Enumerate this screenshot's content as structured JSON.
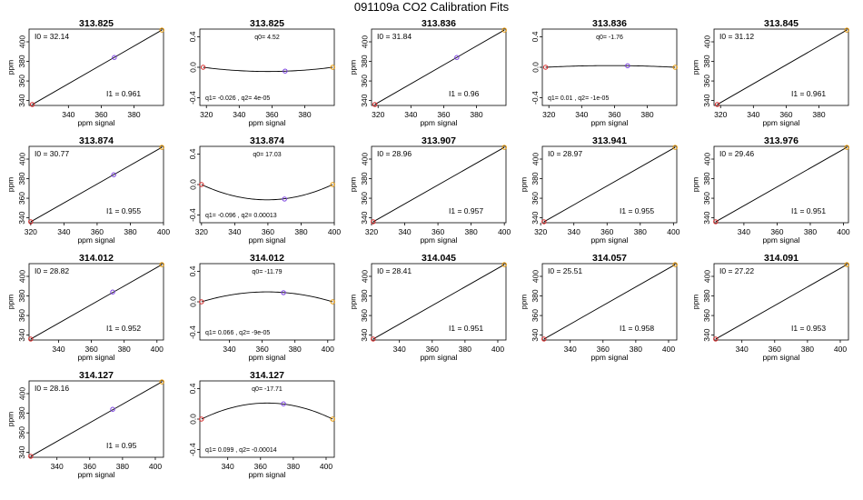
{
  "figure": {
    "title": "091109a   CO2 Calibration Fits"
  },
  "colors": {
    "line": "#000000",
    "point_low": "#d62828",
    "point_mid": "#7a3fe0",
    "point_high": "#e69500"
  },
  "chart_data": [
    {
      "type": "scatter",
      "title": "313.825",
      "xlabel": "ppm signal",
      "ylabel": "ppm",
      "xlim": [
        316,
        398
      ],
      "ylim": [
        335,
        413
      ],
      "xticks": [
        "340",
        "360",
        "380"
      ],
      "yticks": [
        "340",
        "360",
        "380",
        "400"
      ],
      "points": [
        {
          "x": 318,
          "y": 336
        },
        {
          "x": 368,
          "y": 384
        },
        {
          "x": 397,
          "y": 412
        }
      ],
      "fit": {
        "type": "linear",
        "x": [
          318,
          397
        ],
        "y": [
          336,
          412
        ]
      },
      "annotations": {
        "top": "I0 =  32.14",
        "bottom": "I1 =  0.961"
      }
    },
    {
      "type": "scatter",
      "title": "313.825",
      "xlabel": "ppm signal",
      "ylabel": "",
      "xlim": [
        316,
        398
      ],
      "ylim": [
        -0.5,
        0.5
      ],
      "xticks": [
        "320",
        "340",
        "360",
        "380"
      ],
      "yticks": [
        "-0.4",
        "0.0",
        "0.4"
      ],
      "points": [
        {
          "x": 318,
          "y": 0
        },
        {
          "x": 368,
          "y": -0.05
        },
        {
          "x": 397,
          "y": 0
        }
      ],
      "fit": {
        "type": "quadratic",
        "x": [
          318,
          357,
          397
        ],
        "y": [
          0,
          -0.055,
          0
        ]
      },
      "annotations": {
        "top": "q0= 4.52",
        "bottom": "q1= -0.026 , q2= 4e-05"
      }
    },
    {
      "type": "scatter",
      "title": "313.836",
      "xlabel": "ppm signal",
      "ylabel": "ppm",
      "xlim": [
        316,
        398
      ],
      "ylim": [
        335,
        413
      ],
      "xticks": [
        "320",
        "340",
        "360",
        "380"
      ],
      "yticks": [
        "340",
        "360",
        "380",
        "400"
      ],
      "points": [
        {
          "x": 318,
          "y": 336
        },
        {
          "x": 368,
          "y": 384
        },
        {
          "x": 397,
          "y": 412
        }
      ],
      "fit": {
        "type": "linear",
        "x": [
          318,
          397
        ],
        "y": [
          336,
          412
        ]
      },
      "annotations": {
        "top": "I0 =  31.84",
        "bottom": "I1 =  0.96"
      }
    },
    {
      "type": "scatter",
      "title": "313.836",
      "xlabel": "ppm signal",
      "ylabel": "",
      "xlim": [
        316,
        398
      ],
      "ylim": [
        -0.5,
        0.5
      ],
      "xticks": [
        "320",
        "340",
        "360",
        "380"
      ],
      "yticks": [
        "-0.4",
        "0.0",
        "0.4"
      ],
      "points": [
        {
          "x": 318,
          "y": 0
        },
        {
          "x": 368,
          "y": 0.02
        },
        {
          "x": 397,
          "y": 0
        }
      ],
      "fit": {
        "type": "quadratic",
        "x": [
          318,
          357,
          397
        ],
        "y": [
          0,
          0.022,
          0
        ]
      },
      "annotations": {
        "top": "q0= -1.76",
        "bottom": "q1= 0.01 , q2= -1e-05"
      }
    },
    {
      "type": "scatter",
      "title": "313.845",
      "xlabel": "ppm signal",
      "ylabel": "ppm",
      "xlim": [
        316,
        398
      ],
      "ylim": [
        335,
        413
      ],
      "xticks": [
        "320",
        "340",
        "360",
        "380"
      ],
      "yticks": [
        "340",
        "360",
        "380",
        "400"
      ],
      "points": [
        {
          "x": 318,
          "y": 336
        },
        {
          "x": 397,
          "y": 412
        }
      ],
      "fit": {
        "type": "linear",
        "x": [
          318,
          397
        ],
        "y": [
          336,
          412
        ]
      },
      "annotations": {
        "top": "I0 =  31.12",
        "bottom": "I1 =  0.961"
      }
    },
    {
      "type": "scatter",
      "title": "313.874",
      "xlabel": "ppm signal",
      "ylabel": "ppm",
      "xlim": [
        319,
        400
      ],
      "ylim": [
        335,
        413
      ],
      "xticks": [
        "320",
        "340",
        "360",
        "380",
        "400"
      ],
      "yticks": [
        "340",
        "360",
        "380",
        "400"
      ],
      "points": [
        {
          "x": 320,
          "y": 336
        },
        {
          "x": 370,
          "y": 384
        },
        {
          "x": 399,
          "y": 412
        }
      ],
      "fit": {
        "type": "linear",
        "x": [
          320,
          399
        ],
        "y": [
          336,
          412
        ]
      },
      "annotations": {
        "top": "I0 =  30.77",
        "bottom": "I1 =  0.955"
      }
    },
    {
      "type": "scatter",
      "title": "313.874",
      "xlabel": "ppm signal",
      "ylabel": "",
      "xlim": [
        319,
        400
      ],
      "ylim": [
        -0.5,
        0.5
      ],
      "xticks": [
        "320",
        "340",
        "360",
        "380",
        "400"
      ],
      "yticks": [
        "-0.4",
        "0.0",
        "0.4"
      ],
      "points": [
        {
          "x": 320,
          "y": 0
        },
        {
          "x": 370,
          "y": -0.19
        },
        {
          "x": 399,
          "y": 0
        }
      ],
      "fit": {
        "type": "quadratic",
        "x": [
          320,
          359.5,
          399
        ],
        "y": [
          0,
          -0.2,
          0
        ]
      },
      "annotations": {
        "top": "q0= 17.03",
        "bottom": "q1= -0.096 , q2= 0.00013"
      }
    },
    {
      "type": "scatter",
      "title": "313.907",
      "xlabel": "ppm signal",
      "ylabel": "ppm",
      "xlim": [
        320,
        401
      ],
      "ylim": [
        335,
        413
      ],
      "xticks": [
        "320",
        "340",
        "360",
        "380",
        "400"
      ],
      "yticks": [
        "340",
        "360",
        "380",
        "400"
      ],
      "points": [
        {
          "x": 321,
          "y": 336
        },
        {
          "x": 400,
          "y": 412
        }
      ],
      "fit": {
        "type": "linear",
        "x": [
          321,
          400
        ],
        "y": [
          336,
          412
        ]
      },
      "annotations": {
        "top": "I0 =  28.96",
        "bottom": "I1 =  0.957"
      }
    },
    {
      "type": "scatter",
      "title": "313.941",
      "xlabel": "ppm signal",
      "ylabel": "ppm",
      "xlim": [
        321,
        402
      ],
      "ylim": [
        335,
        413
      ],
      "xticks": [
        "320",
        "340",
        "360",
        "380",
        "400"
      ],
      "yticks": [
        "340",
        "360",
        "380",
        "400"
      ],
      "points": [
        {
          "x": 322,
          "y": 336
        },
        {
          "x": 401,
          "y": 412
        }
      ],
      "fit": {
        "type": "linear",
        "x": [
          322,
          401
        ],
        "y": [
          336,
          412
        ]
      },
      "annotations": {
        "top": "I0 =  28.97",
        "bottom": "I1 =  0.955"
      }
    },
    {
      "type": "scatter",
      "title": "313.976",
      "xlabel": "ppm signal",
      "ylabel": "ppm",
      "xlim": [
        322,
        403
      ],
      "ylim": [
        335,
        413
      ],
      "xticks": [
        "340",
        "360",
        "380",
        "400"
      ],
      "yticks": [
        "340",
        "360",
        "380",
        "400"
      ],
      "points": [
        {
          "x": 323,
          "y": 336
        },
        {
          "x": 402,
          "y": 412
        }
      ],
      "fit": {
        "type": "linear",
        "x": [
          323,
          402
        ],
        "y": [
          336,
          412
        ]
      },
      "annotations": {
        "top": "I0 =  29.46",
        "bottom": "I1 =  0.951"
      }
    },
    {
      "type": "scatter",
      "title": "314.012",
      "xlabel": "ppm signal",
      "ylabel": "ppm",
      "xlim": [
        322,
        404
      ],
      "ylim": [
        335,
        413
      ],
      "xticks": [
        "340",
        "360",
        "380",
        "400"
      ],
      "yticks": [
        "340",
        "360",
        "380",
        "400"
      ],
      "points": [
        {
          "x": 323,
          "y": 336
        },
        {
          "x": 373,
          "y": 384
        },
        {
          "x": 403,
          "y": 412
        }
      ],
      "fit": {
        "type": "linear",
        "x": [
          323,
          403
        ],
        "y": [
          336,
          412
        ]
      },
      "annotations": {
        "top": "I0 =  28.82",
        "bottom": "I1 =  0.952"
      }
    },
    {
      "type": "scatter",
      "title": "314.012",
      "xlabel": "ppm signal",
      "ylabel": "",
      "xlim": [
        322,
        404
      ],
      "ylim": [
        -0.5,
        0.5
      ],
      "xticks": [
        "340",
        "360",
        "380",
        "400"
      ],
      "yticks": [
        "-0.4",
        "0.0",
        "0.4"
      ],
      "points": [
        {
          "x": 323,
          "y": 0
        },
        {
          "x": 373,
          "y": 0.12
        },
        {
          "x": 403,
          "y": 0
        }
      ],
      "fit": {
        "type": "quadratic",
        "x": [
          323,
          363,
          403
        ],
        "y": [
          0,
          0.13,
          0
        ]
      },
      "annotations": {
        "top": "q0= -11.79",
        "bottom": "q1= 0.066 , q2= -9e-05"
      }
    },
    {
      "type": "scatter",
      "title": "314.045",
      "xlabel": "ppm signal",
      "ylabel": "ppm",
      "xlim": [
        323,
        405
      ],
      "ylim": [
        335,
        413
      ],
      "xticks": [
        "340",
        "360",
        "380",
        "400"
      ],
      "yticks": [
        "340",
        "360",
        "380",
        "400"
      ],
      "points": [
        {
          "x": 324,
          "y": 336
        },
        {
          "x": 404,
          "y": 412
        }
      ],
      "fit": {
        "type": "linear",
        "x": [
          324,
          404
        ],
        "y": [
          336,
          412
        ]
      },
      "annotations": {
        "top": "I0 =  28.41",
        "bottom": "I1 =  0.951"
      }
    },
    {
      "type": "scatter",
      "title": "314.057",
      "xlabel": "ppm signal",
      "ylabel": "ppm",
      "xlim": [
        323,
        405
      ],
      "ylim": [
        335,
        413
      ],
      "xticks": [
        "340",
        "360",
        "380",
        "400"
      ],
      "yticks": [
        "340",
        "360",
        "380",
        "400"
      ],
      "points": [
        {
          "x": 324,
          "y": 336
        },
        {
          "x": 404,
          "y": 412
        }
      ],
      "fit": {
        "type": "linear",
        "x": [
          324,
          404
        ],
        "y": [
          336,
          412
        ]
      },
      "annotations": {
        "top": "I0 =  25.51",
        "bottom": "I1 =  0.958"
      }
    },
    {
      "type": "scatter",
      "title": "314.091",
      "xlabel": "ppm signal",
      "ylabel": "ppm",
      "xlim": [
        323,
        405
      ],
      "ylim": [
        335,
        413
      ],
      "xticks": [
        "340",
        "360",
        "380",
        "400"
      ],
      "yticks": [
        "340",
        "360",
        "380",
        "400"
      ],
      "points": [
        {
          "x": 324,
          "y": 336
        },
        {
          "x": 404,
          "y": 412
        }
      ],
      "fit": {
        "type": "linear",
        "x": [
          324,
          404
        ],
        "y": [
          336,
          412
        ]
      },
      "annotations": {
        "top": "I0 =  27.22",
        "bottom": "I1 =  0.953"
      }
    },
    {
      "type": "scatter",
      "title": "314.127",
      "xlabel": "ppm signal",
      "ylabel": "ppm",
      "xlim": [
        323,
        405
      ],
      "ylim": [
        335,
        413
      ],
      "xticks": [
        "340",
        "360",
        "380",
        "400"
      ],
      "yticks": [
        "340",
        "360",
        "380",
        "400"
      ],
      "points": [
        {
          "x": 324,
          "y": 336
        },
        {
          "x": 374,
          "y": 384
        },
        {
          "x": 404,
          "y": 412
        }
      ],
      "fit": {
        "type": "linear",
        "x": [
          324,
          404
        ],
        "y": [
          336,
          412
        ]
      },
      "annotations": {
        "top": "I0 =  28.16",
        "bottom": "I1 =  0.95"
      }
    },
    {
      "type": "scatter",
      "title": "314.127",
      "xlabel": "ppm signal",
      "ylabel": "",
      "xlim": [
        323,
        405
      ],
      "ylim": [
        -0.5,
        0.5
      ],
      "xticks": [
        "340",
        "360",
        "380",
        "400"
      ],
      "yticks": [
        "-0.4",
        "0.0",
        "0.4"
      ],
      "points": [
        {
          "x": 324,
          "y": 0
        },
        {
          "x": 374,
          "y": 0.2
        },
        {
          "x": 404,
          "y": 0
        }
      ],
      "fit": {
        "type": "quadratic",
        "x": [
          324,
          364,
          404
        ],
        "y": [
          0,
          0.21,
          0
        ]
      },
      "annotations": {
        "top": "q0= -17.71",
        "bottom": "q1= 0.099 , q2= -0.00014"
      }
    }
  ]
}
